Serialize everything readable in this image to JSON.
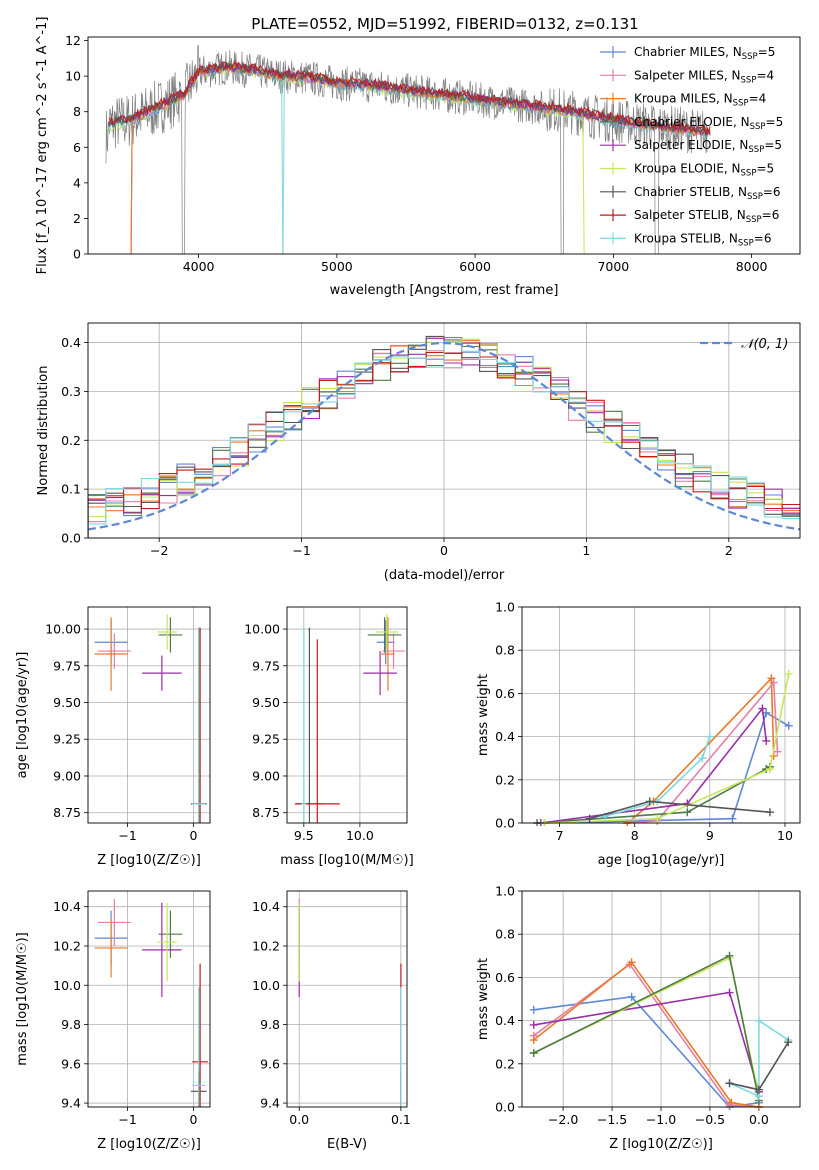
{
  "title": "PLATE=0552, MJD=51992, FIBERID=0132, z=0.131",
  "colors": {
    "chab_miles": "#5f87d4",
    "salp_miles": "#e57fa8",
    "krou_miles": "#e87a2a",
    "chab_elodie": "#4e7a46",
    "salp_elodie": "#9a2ea8",
    "krou_elodie": "#c4e85a",
    "chab_stelib": "#555555",
    "salp_stelib": "#c21b1b",
    "krou_stelib": "#7fd8de",
    "data": "#808080",
    "normal": "#5f87d4"
  },
  "chart_data": [
    {
      "id": "spectrum",
      "type": "line",
      "xlabel": "wavelength [Angstrom, rest frame]",
      "ylabel": "Flux [f_λ 10^-17 erg cm^-2 s^-1 A^-1]",
      "xlim": [
        3200,
        8350
      ],
      "ylim": [
        0,
        12.2
      ],
      "xticks": [
        4000,
        5000,
        6000,
        7000,
        8000
      ],
      "yticks": [
        0,
        2,
        4,
        6,
        8,
        10,
        12
      ],
      "grid": false,
      "legend": "right",
      "legend_entries": [
        {
          "name": "Chabrier MILES, N",
          "sub": "SSP",
          "suffix": "=5",
          "color": "chab_miles"
        },
        {
          "name": "Salpeter MILES, N",
          "sub": "SSP",
          "suffix": "=4",
          "color": "salp_miles"
        },
        {
          "name": "Kroupa MILES, N",
          "sub": "SSP",
          "suffix": "=4",
          "color": "krou_miles"
        },
        {
          "name": "Chabrier ELODIE, N",
          "sub": "SSP",
          "suffix": "=5",
          "color": "chab_elodie"
        },
        {
          "name": "Salpeter ELODIE, N",
          "sub": "SSP",
          "suffix": "=5",
          "color": "salp_elodie"
        },
        {
          "name": "Kroupa ELODIE, N",
          "sub": "SSP",
          "suffix": "=5",
          "color": "krou_elodie"
        },
        {
          "name": "Chabrier STELIB, N",
          "sub": "SSP",
          "suffix": "=6",
          "color": "chab_stelib"
        },
        {
          "name": "Salpeter STELIB, N",
          "sub": "SSP",
          "suffix": "=6",
          "color": "salp_stelib"
        },
        {
          "name": "Kroupa STELIB, N",
          "sub": "SSP",
          "suffix": "=6",
          "color": "krou_stelib"
        }
      ],
      "model_continuum": {
        "x": [
          3350,
          3500,
          3700,
          3900,
          4000,
          4200,
          4400,
          4600,
          4800,
          5000,
          5200,
          5500,
          5800,
          6100,
          6400,
          6700,
          7000,
          7300,
          7600,
          8000
        ],
        "y": [
          7.3,
          7.5,
          8.2,
          9.0,
          10.2,
          10.5,
          10.3,
          10.0,
          9.9,
          9.6,
          9.5,
          9.2,
          8.9,
          8.6,
          8.3,
          8.0,
          7.5,
          7.2,
          6.9,
          6.7
        ]
      }
    },
    {
      "id": "residuals",
      "type": "step",
      "xlabel": "(data-model)/error",
      "ylabel": "Normed distribution",
      "xlim": [
        -2.5,
        2.5
      ],
      "ylim": [
        0,
        0.44
      ],
      "xticks": [
        -2,
        -1,
        0,
        1,
        2
      ],
      "yticks": [
        0.0,
        0.1,
        0.2,
        0.3,
        0.4
      ],
      "grid": true,
      "legend": "top-right",
      "normal_label": "𝒩(0, 1)",
      "bins": 40
    },
    {
      "id": "age_vs_Z",
      "type": "errorbar",
      "xlabel": "Z [log10(Z/Z☉)]",
      "ylabel": "age  [log10(age/yr)]",
      "xlim": [
        -1.6,
        0.25
      ],
      "ylim": [
        8.68,
        10.15
      ],
      "xticks": [
        -1,
        0
      ],
      "yticks": [
        8.75,
        9.0,
        9.25,
        9.5,
        9.75,
        10.0
      ],
      "grid": true,
      "points": [
        {
          "x": -1.25,
          "y": 9.91,
          "xerr": 0.25,
          "yerr": 0.15,
          "color": "chab_miles"
        },
        {
          "x": -1.2,
          "y": 9.85,
          "xerr": 0.25,
          "yerr": 0.12,
          "color": "salp_miles"
        },
        {
          "x": -1.25,
          "y": 9.83,
          "xerr": 0.25,
          "yerr": 0.25,
          "color": "krou_miles"
        },
        {
          "x": -0.35,
          "y": 9.96,
          "xerr": 0.18,
          "yerr": 0.12,
          "color": "chab_elodie"
        },
        {
          "x": -0.48,
          "y": 9.7,
          "xerr": 0.3,
          "yerr": 0.12,
          "color": "salp_elodie"
        },
        {
          "x": -0.4,
          "y": 9.98,
          "xerr": 0.15,
          "yerr": 0.12,
          "color": "krou_elodie"
        },
        {
          "x": 0.08,
          "y": 8.81,
          "xerr": 0.12,
          "yerr": 1.2,
          "color": "chab_stelib"
        },
        {
          "x": 0.1,
          "y": 8.81,
          "xerr": 0.08,
          "yerr": 1.2,
          "color": "salp_stelib"
        },
        {
          "x": 0.08,
          "y": 8.81,
          "xerr": 0.1,
          "yerr": 1.2,
          "color": "krou_stelib"
        }
      ]
    },
    {
      "id": "age_vs_mass",
      "type": "errorbar",
      "xlabel": "mass [log10(M/M☉)]",
      "ylabel": "",
      "xlim": [
        9.35,
        10.42
      ],
      "ylim": [
        8.68,
        10.15
      ],
      "xticks": [
        9.5,
        10.0
      ],
      "yticks": [
        8.75,
        9.0,
        9.25,
        9.5,
        9.75,
        10.0
      ],
      "grid": true,
      "points": [
        {
          "x": 10.23,
          "y": 9.91,
          "xerr": 0.08,
          "yerr": 0.15,
          "color": "chab_miles"
        },
        {
          "x": 10.3,
          "y": 9.85,
          "xerr": 0.1,
          "yerr": 0.12,
          "color": "salp_miles"
        },
        {
          "x": 10.25,
          "y": 9.83,
          "xerr": 0.06,
          "yerr": 0.25,
          "color": "krou_miles"
        },
        {
          "x": 10.22,
          "y": 9.96,
          "xerr": 0.15,
          "yerr": 0.12,
          "color": "chab_elodie"
        },
        {
          "x": 10.18,
          "y": 9.7,
          "xerr": 0.15,
          "yerr": 0.15,
          "color": "salp_elodie"
        },
        {
          "x": 10.24,
          "y": 9.98,
          "xerr": 0.1,
          "yerr": 0.12,
          "color": "krou_elodie"
        },
        {
          "x": 9.55,
          "y": 8.81,
          "xerr": 0.12,
          "yerr": 1.2,
          "color": "chab_stelib"
        },
        {
          "x": 9.62,
          "y": 8.81,
          "xerr": 0.2,
          "yerr": 1.12,
          "color": "salp_stelib"
        },
        {
          "x": 9.5,
          "y": 8.81,
          "xerr": 0.02,
          "yerr": 1.2,
          "color": "krou_stelib"
        }
      ]
    },
    {
      "id": "weight_vs_age",
      "type": "line",
      "xlabel": "age  [log10(age/yr)]",
      "ylabel": "mass weight",
      "xlim": [
        6.5,
        10.2
      ],
      "ylim": [
        0,
        1.0
      ],
      "xticks": [
        7,
        8,
        9,
        10
      ],
      "yticks": [
        0.0,
        0.2,
        0.4,
        0.6,
        0.8,
        1.0
      ],
      "grid": true,
      "series": [
        {
          "color": "chab_miles",
          "x": [
            6.8,
            9.3,
            9.75,
            10.05
          ],
          "y": [
            0.0,
            0.02,
            0.51,
            0.45
          ]
        },
        {
          "color": "salp_miles",
          "x": [
            7.9,
            8.3,
            9.85,
            9.9
          ],
          "y": [
            0.0,
            0.01,
            0.65,
            0.33
          ]
        },
        {
          "color": "krou_miles",
          "x": [
            7.9,
            8.25,
            9.82,
            9.85
          ],
          "y": [
            0.0,
            0.1,
            0.67,
            0.31
          ]
        },
        {
          "color": "chab_elodie",
          "x": [
            6.7,
            8.7,
            9.75,
            9.8
          ],
          "y": [
            0.0,
            0.05,
            0.25,
            0.26
          ]
        },
        {
          "color": "salp_elodie",
          "x": [
            6.75,
            8.7,
            9.7,
            9.75
          ],
          "y": [
            0.0,
            0.09,
            0.53,
            0.38
          ]
        },
        {
          "color": "krou_elodie",
          "x": [
            6.8,
            8.3,
            9.8,
            10.05
          ],
          "y": [
            0.0,
            0.02,
            0.25,
            0.69
          ]
        },
        {
          "color": "krou_stelib",
          "x": [
            7.6,
            8.3,
            8.9,
            9.0
          ],
          "y": [
            0.03,
            0.1,
            0.3,
            0.4
          ]
        },
        {
          "color": "chab_stelib",
          "x": [
            7.4,
            8.2,
            9.8
          ],
          "y": [
            0.02,
            0.1,
            0.05
          ]
        }
      ]
    },
    {
      "id": "mass_vs_Z",
      "type": "errorbar",
      "xlabel": "Z [log10(Z/Z☉)]",
      "ylabel": "mass [log10(M/M☉)]",
      "xlim": [
        -1.6,
        0.25
      ],
      "ylim": [
        9.38,
        10.48
      ],
      "xticks": [
        -1,
        0
      ],
      "yticks": [
        9.4,
        9.6,
        9.8,
        10.0,
        10.2,
        10.4
      ],
      "grid": true,
      "points": [
        {
          "x": -1.25,
          "y": 10.24,
          "xerr": 0.25,
          "yerr": 0.14,
          "color": "chab_miles"
        },
        {
          "x": -1.2,
          "y": 10.32,
          "xerr": 0.25,
          "yerr": 0.12,
          "color": "salp_miles"
        },
        {
          "x": -1.25,
          "y": 10.19,
          "xerr": 0.25,
          "yerr": 0.15,
          "color": "krou_miles"
        },
        {
          "x": -0.35,
          "y": 10.26,
          "xerr": 0.18,
          "yerr": 0.12,
          "color": "chab_elodie"
        },
        {
          "x": -0.48,
          "y": 10.18,
          "xerr": 0.3,
          "yerr": 0.24,
          "color": "salp_elodie"
        },
        {
          "x": -0.4,
          "y": 10.22,
          "xerr": 0.15,
          "yerr": 0.2,
          "color": "krou_elodie"
        },
        {
          "x": 0.08,
          "y": 9.46,
          "xerr": 0.12,
          "yerr": 0.1,
          "color": "chab_stelib"
        },
        {
          "x": 0.1,
          "y": 9.61,
          "xerr": 0.12,
          "yerr": 0.5,
          "color": "salp_stelib"
        },
        {
          "x": 0.08,
          "y": 9.49,
          "xerr": 0.1,
          "yerr": 0.5,
          "color": "krou_stelib"
        }
      ]
    },
    {
      "id": "mass_vs_ebv",
      "type": "errorbar",
      "xlabel": "E(B-V)",
      "ylabel": "",
      "xlim": [
        -0.012,
        0.106
      ],
      "ylim": [
        9.38,
        10.48
      ],
      "xticks": [
        0.0,
        0.1
      ],
      "yticks": [
        9.4,
        9.6,
        9.8,
        10.0,
        10.2,
        10.4
      ],
      "grid": true,
      "points": [
        {
          "x": 0.0,
          "y": 10.24,
          "xerr": 0,
          "yerr": 0.14,
          "color": "chab_miles"
        },
        {
          "x": 0.0,
          "y": 10.32,
          "xerr": 0,
          "yerr": 0.12,
          "color": "salp_miles"
        },
        {
          "x": 0.0,
          "y": 10.19,
          "xerr": 0,
          "yerr": 0.15,
          "color": "krou_miles"
        },
        {
          "x": 0.0,
          "y": 10.26,
          "xerr": 0,
          "yerr": 0.12,
          "color": "chab_elodie"
        },
        {
          "x": 0.0,
          "y": 10.18,
          "xerr": 0,
          "yerr": 0.24,
          "color": "salp_elodie"
        },
        {
          "x": 0.0,
          "y": 10.22,
          "xerr": 0,
          "yerr": 0.2,
          "color": "krou_elodie"
        },
        {
          "x": 0.1,
          "y": 9.46,
          "xerr": 0,
          "yerr": 0.1,
          "color": "chab_stelib"
        },
        {
          "x": 0.1,
          "y": 9.61,
          "xerr": 0,
          "yerr": 0.5,
          "color": "salp_stelib"
        },
        {
          "x": 0.1,
          "y": 9.49,
          "xerr": 0,
          "yerr": 0.5,
          "color": "krou_stelib"
        }
      ]
    },
    {
      "id": "weight_vs_Z",
      "type": "line",
      "xlabel": "Z [log10(Z/Z☉)]",
      "ylabel": "mass weight",
      "xlim": [
        -2.42,
        0.42
      ],
      "ylim": [
        0,
        1.0
      ],
      "xticks": [
        -2.0,
        -1.5,
        -1.0,
        -0.5,
        0.0
      ],
      "yticks": [
        0.0,
        0.2,
        0.4,
        0.6,
        0.8,
        1.0
      ],
      "grid": true,
      "series": [
        {
          "color": "chab_miles",
          "x": [
            -2.3,
            -1.3,
            -0.3,
            0.0
          ],
          "y": [
            0.45,
            0.51,
            0.0,
            0.02
          ]
        },
        {
          "color": "salp_miles",
          "x": [
            -2.3,
            -1.32,
            -0.3,
            0.0
          ],
          "y": [
            0.33,
            0.66,
            0.01,
            0.0
          ]
        },
        {
          "color": "krou_miles",
          "x": [
            -2.3,
            -1.3,
            -0.28,
            0.0
          ],
          "y": [
            0.31,
            0.67,
            0.02,
            0.0
          ]
        },
        {
          "color": "salp_elodie",
          "x": [
            -2.3,
            -0.3,
            0.0
          ],
          "y": [
            0.38,
            0.53,
            0.07
          ]
        },
        {
          "color": "krou_elodie",
          "x": [
            -2.3,
            -0.3,
            0.0
          ],
          "y": [
            0.25,
            0.69,
            0.05
          ]
        },
        {
          "color": "chab_elodie",
          "x": [
            -2.3,
            -0.3,
            0.0
          ],
          "y": [
            0.25,
            0.7,
            0.03
          ]
        },
        {
          "color": "krou_stelib",
          "x": [
            -0.3,
            0.0,
            0.0,
            0.3
          ],
          "y": [
            0.11,
            0.05,
            0.4,
            0.31
          ]
        },
        {
          "color": "chab_stelib",
          "x": [
            -0.3,
            0.0,
            0.3
          ],
          "y": [
            0.11,
            0.08,
            0.3
          ]
        }
      ]
    }
  ]
}
